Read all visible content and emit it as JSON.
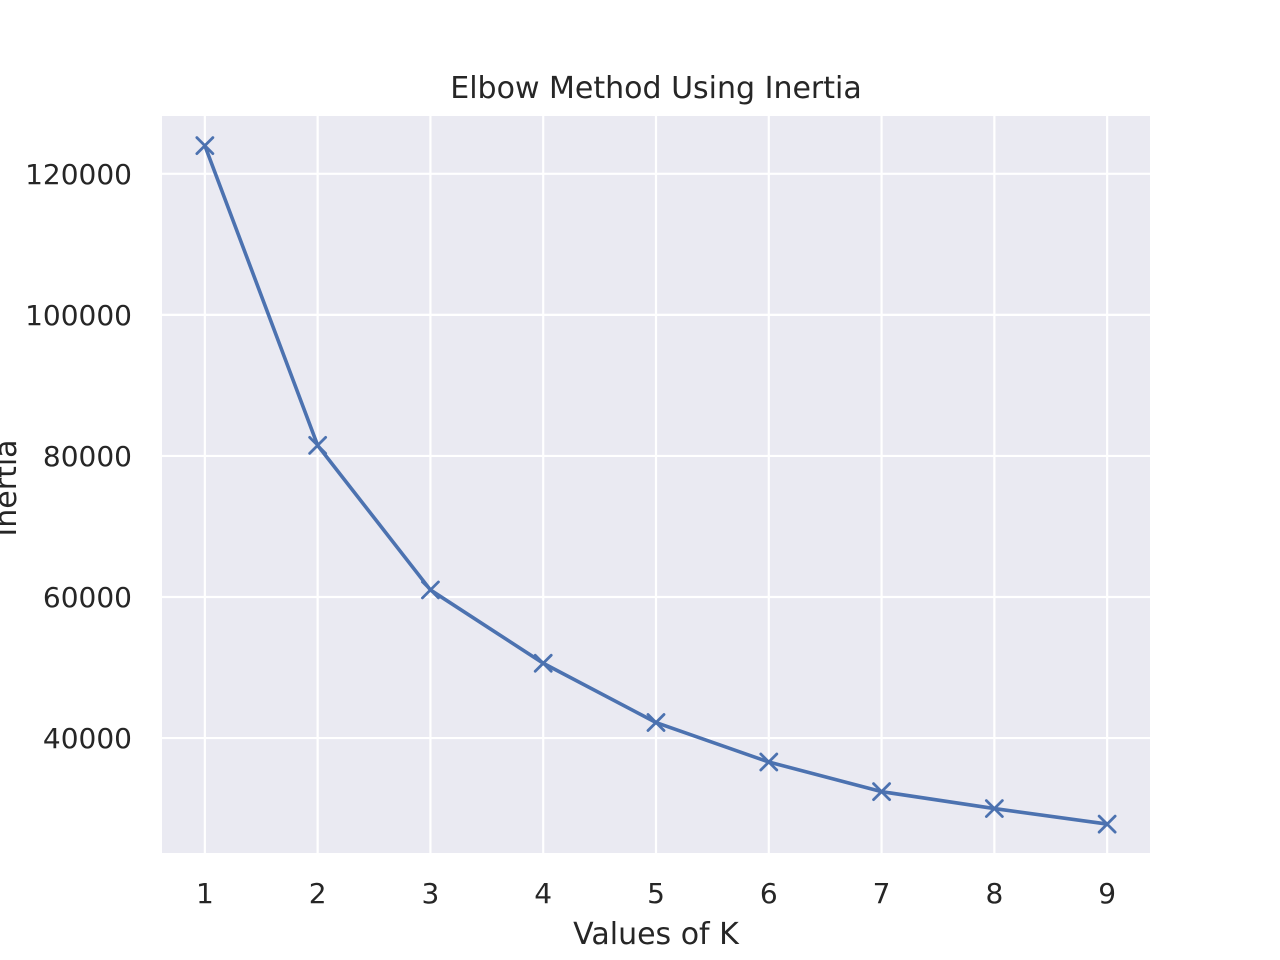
{
  "chart_data": {
    "type": "line",
    "title": "Elbow Method Using Inertia",
    "xlabel": "Values of K",
    "ylabel": "Inertia",
    "x": [
      1,
      2,
      3,
      4,
      5,
      6,
      7,
      8,
      9
    ],
    "series": [
      {
        "values": [
          124000,
          81500,
          61000,
          50600,
          42200,
          36600,
          32400,
          30000,
          27800
        ],
        "marker": "x",
        "color": "#4c72b0"
      }
    ],
    "xlim": [
      0.62,
      9.38
    ],
    "ylim": [
      23700,
      128200
    ],
    "xticks": [
      1,
      2,
      3,
      4,
      5,
      6,
      7,
      8,
      9
    ],
    "yticks": [
      40000,
      60000,
      80000,
      100000,
      120000
    ],
    "xtick_labels": [
      "1",
      "2",
      "3",
      "4",
      "5",
      "6",
      "7",
      "8",
      "9"
    ],
    "ytick_labels": [
      "40000",
      "60000",
      "80000",
      "100000",
      "120000"
    ],
    "grid": true,
    "background_color": "#eaeaf2",
    "grid_color": "#ffffff"
  }
}
